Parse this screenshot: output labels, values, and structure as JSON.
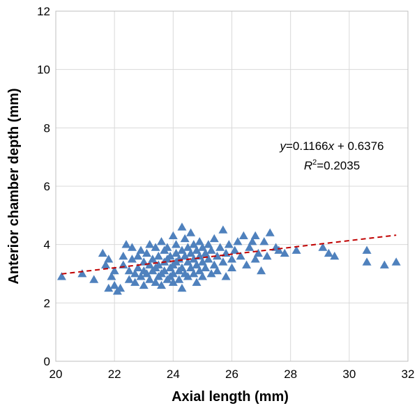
{
  "chart_data": {
    "type": "scatter",
    "xlabel": "Axial length (mm)",
    "ylabel": "Anterior chamber depth (mm)",
    "xlim": [
      20,
      32
    ],
    "ylim": [
      0,
      12
    ],
    "x_ticks": [
      "20",
      "22",
      "24",
      "26",
      "28",
      "30",
      "32"
    ],
    "y_ticks": [
      "0",
      "2",
      "4",
      "6",
      "8",
      "10",
      "12"
    ],
    "grid": true,
    "legend": "none",
    "marker": "triangle",
    "series": [
      {
        "color": "#4f81bd",
        "points": [
          [
            20.2,
            2.9
          ],
          [
            20.9,
            3.0
          ],
          [
            21.3,
            2.8
          ],
          [
            21.6,
            3.7
          ],
          [
            21.7,
            3.3
          ],
          [
            21.8,
            3.5
          ],
          [
            21.8,
            2.5
          ],
          [
            21.9,
            2.9
          ],
          [
            22.0,
            2.6
          ],
          [
            22.0,
            3.1
          ],
          [
            22.1,
            2.4
          ],
          [
            22.2,
            2.5
          ],
          [
            22.3,
            3.3
          ],
          [
            22.3,
            3.6
          ],
          [
            22.4,
            4.0
          ],
          [
            22.5,
            3.1
          ],
          [
            22.5,
            2.8
          ],
          [
            22.6,
            3.5
          ],
          [
            22.6,
            3.9
          ],
          [
            22.7,
            3.0
          ],
          [
            22.7,
            2.7
          ],
          [
            22.8,
            3.2
          ],
          [
            22.8,
            3.6
          ],
          [
            22.9,
            2.9
          ],
          [
            22.9,
            3.8
          ],
          [
            23.0,
            3.1
          ],
          [
            23.0,
            3.4
          ],
          [
            23.0,
            2.6
          ],
          [
            23.1,
            3.7
          ],
          [
            23.1,
            3.0
          ],
          [
            23.2,
            3.3
          ],
          [
            23.2,
            2.8
          ],
          [
            23.2,
            4.0
          ],
          [
            23.3,
            3.5
          ],
          [
            23.3,
            3.1
          ],
          [
            23.4,
            2.7
          ],
          [
            23.4,
            3.9
          ],
          [
            23.4,
            3.2
          ],
          [
            23.5,
            3.6
          ],
          [
            23.5,
            2.9
          ],
          [
            23.5,
            3.3
          ],
          [
            23.6,
            3.0
          ],
          [
            23.6,
            4.1
          ],
          [
            23.6,
            2.6
          ],
          [
            23.7,
            3.4
          ],
          [
            23.7,
            3.8
          ],
          [
            23.7,
            3.1
          ],
          [
            23.8,
            2.8
          ],
          [
            23.8,
            3.5
          ],
          [
            23.8,
            3.9
          ],
          [
            23.9,
            3.2
          ],
          [
            23.9,
            2.9
          ],
          [
            23.9,
            3.6
          ],
          [
            24.0,
            4.3
          ],
          [
            24.0,
            3.3
          ],
          [
            24.0,
            3.0
          ],
          [
            24.0,
            2.7
          ],
          [
            24.1,
            3.7
          ],
          [
            24.1,
            3.4
          ],
          [
            24.1,
            4.0
          ],
          [
            24.2,
            3.1
          ],
          [
            24.2,
            2.8
          ],
          [
            24.2,
            3.5
          ],
          [
            24.3,
            4.6
          ],
          [
            24.3,
            3.8
          ],
          [
            24.3,
            3.2
          ],
          [
            24.3,
            2.5
          ],
          [
            24.4,
            3.6
          ],
          [
            24.4,
            4.2
          ],
          [
            24.4,
            3.0
          ],
          [
            24.5,
            3.4
          ],
          [
            24.5,
            3.9
          ],
          [
            24.5,
            2.9
          ],
          [
            24.6,
            3.7
          ],
          [
            24.6,
            4.4
          ],
          [
            24.6,
            3.2
          ],
          [
            24.7,
            3.5
          ],
          [
            24.7,
            3.0
          ],
          [
            24.7,
            4.0
          ],
          [
            24.8,
            3.3
          ],
          [
            24.8,
            3.8
          ],
          [
            24.8,
            2.7
          ],
          [
            24.9,
            3.6
          ],
          [
            24.9,
            4.1
          ],
          [
            24.9,
            3.1
          ],
          [
            25.0,
            3.4
          ],
          [
            25.0,
            3.9
          ],
          [
            25.0,
            2.9
          ],
          [
            25.1,
            3.7
          ],
          [
            25.1,
            3.2
          ],
          [
            25.2,
            4.0
          ],
          [
            25.2,
            3.5
          ],
          [
            25.3,
            3.0
          ],
          [
            25.3,
            3.8
          ],
          [
            25.4,
            3.3
          ],
          [
            25.4,
            4.2
          ],
          [
            25.5,
            3.6
          ],
          [
            25.5,
            3.1
          ],
          [
            25.6,
            3.9
          ],
          [
            25.7,
            4.5
          ],
          [
            25.7,
            3.4
          ],
          [
            25.8,
            2.9
          ],
          [
            25.8,
            3.7
          ],
          [
            25.9,
            4.0
          ],
          [
            26.0,
            3.5
          ],
          [
            26.0,
            3.2
          ],
          [
            26.1,
            3.8
          ],
          [
            26.2,
            4.1
          ],
          [
            26.3,
            3.6
          ],
          [
            26.4,
            4.3
          ],
          [
            26.5,
            3.3
          ],
          [
            26.6,
            3.9
          ],
          [
            26.7,
            4.1
          ],
          [
            26.8,
            3.5
          ],
          [
            26.8,
            4.3
          ],
          [
            26.9,
            3.7
          ],
          [
            27.0,
            3.1
          ],
          [
            27.1,
            4.1
          ],
          [
            27.2,
            3.6
          ],
          [
            27.3,
            4.4
          ],
          [
            27.5,
            3.9
          ],
          [
            27.6,
            3.8
          ],
          [
            27.8,
            3.7
          ],
          [
            28.2,
            3.8
          ],
          [
            29.1,
            3.9
          ],
          [
            29.3,
            3.7
          ],
          [
            29.5,
            3.6
          ],
          [
            30.6,
            3.8
          ],
          [
            30.6,
            3.4
          ],
          [
            31.2,
            3.3
          ],
          [
            31.6,
            3.4
          ]
        ]
      }
    ],
    "trendline": {
      "slope": 0.1166,
      "intercept": 0.6376,
      "color": "#c00000",
      "x_range": [
        20.2,
        31.6
      ]
    },
    "annotation": {
      "equation_y": "y",
      "equation_mid": "=0.1166",
      "equation_x": "x",
      "equation_rest": " + 0.6376",
      "r2_r": "R",
      "r2_sup": "2",
      "r2_rest": "=0.2035"
    }
  }
}
